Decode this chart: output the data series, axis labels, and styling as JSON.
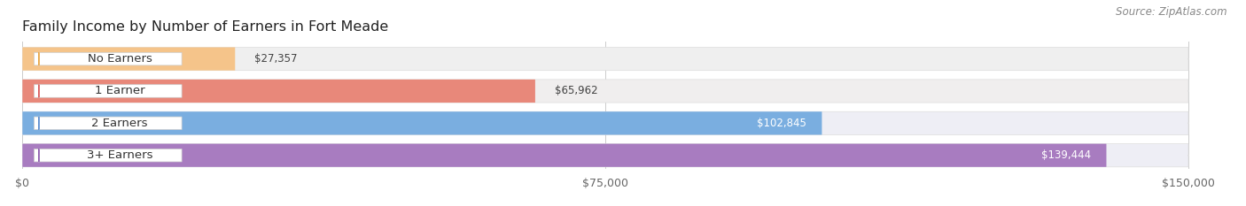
{
  "title": "Family Income by Number of Earners in Fort Meade",
  "source": "Source: ZipAtlas.com",
  "categories": [
    "No Earners",
    "1 Earner",
    "2 Earners",
    "3+ Earners"
  ],
  "values": [
    27357,
    65962,
    102845,
    139444
  ],
  "labels": [
    "$27,357",
    "$65,962",
    "$102,845",
    "$139,444"
  ],
  "bar_colors": [
    "#f5c48a",
    "#e8887a",
    "#7aaee0",
    "#a87cc0"
  ],
  "bar_bg_colors": [
    "#efefef",
    "#f0eeee",
    "#eeeef5",
    "#eeeef5"
  ],
  "label_inside": [
    false,
    false,
    true,
    true
  ],
  "label_colors_dark": "#444444",
  "label_colors_light": "#ffffff",
  "circle_colors": [
    "#e8a84a",
    "#d96060",
    "#6090d0",
    "#9060b0"
  ],
  "x_ticks": [
    0,
    75000,
    150000
  ],
  "x_tick_labels": [
    "$0",
    "$75,000",
    "$150,000"
  ],
  "max_val": 150000,
  "xlim_max": 155000,
  "background_color": "#ffffff",
  "title_fontsize": 11.5,
  "source_fontsize": 8.5,
  "tick_fontsize": 9,
  "bar_label_fontsize": 8.5,
  "category_fontsize": 9.5
}
